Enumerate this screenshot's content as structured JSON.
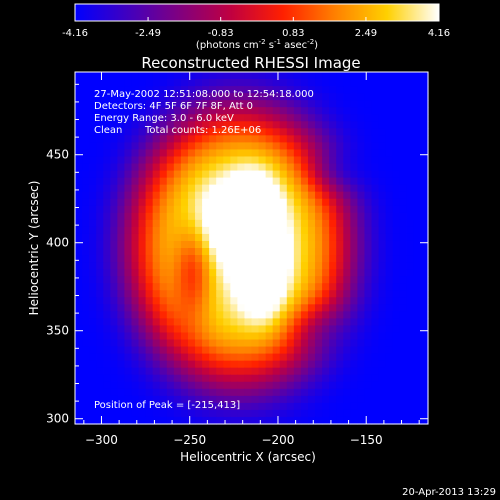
{
  "chart_data": {
    "type": "heatmap",
    "title": "Reconstructed RHESSI Image",
    "xlabel": "Heliocentric X (arcsec)",
    "ylabel": "Heliocentric Y (arcsec)",
    "xlim": [
      -315,
      -115
    ],
    "ylim": [
      297,
      497
    ],
    "x_ticks": [
      -300,
      -250,
      -200,
      -150
    ],
    "y_ticks": [
      300,
      350,
      400,
      450
    ],
    "colorbar": {
      "min": -4.16,
      "max": 4.16,
      "ticks": [
        "-4.16",
        "-2.49",
        "-0.83",
        "0.83",
        "2.49",
        "4.16"
      ],
      "units_prefix": "(photons cm",
      "units_exp1": "-2",
      "units_mid": " s",
      "units_exp2": "-1",
      "units_mid2": " asec",
      "units_exp3": "-2",
      "units_suffix": ")",
      "colors": [
        "#0000ff",
        "#4000c0",
        "#800080",
        "#c00040",
        "#ff2000",
        "#ff8000",
        "#ffd000",
        "#ffffff"
      ]
    },
    "annotations": {
      "time": "27-May-2002 12:51:08.000 to 12:54:18.000",
      "detectors": "Detectors: 4F 5F 6F 7F 8F, Att 0",
      "energy": "Energy Range: 3.0 - 6.0 keV",
      "clean_label": "Clean",
      "counts": "Total counts: 1.26E+06",
      "peak": "Position of Peak = [-215,413]"
    },
    "peak": [
      -215,
      413
    ],
    "sources": [
      {
        "x": -222,
        "y": 398,
        "sx": 62,
        "sy": 78,
        "amp": 3.6
      },
      {
        "x": -214,
        "y": 412,
        "sx": 10,
        "sy": 17,
        "amp": 4.5
      },
      {
        "x": -209,
        "y": 384,
        "sx": 9,
        "sy": 17,
        "amp": 3.5
      },
      {
        "x": -233,
        "y": 412,
        "sx": 13,
        "sy": 16,
        "amp": 1.6
      },
      {
        "x": -248,
        "y": 385,
        "sx": 8,
        "sy": 20,
        "amp": -2.6
      },
      {
        "x": -180,
        "y": 352,
        "sx": 12,
        "sy": 10,
        "amp": -1.2
      },
      {
        "x": -170,
        "y": 440,
        "sx": 12,
        "sy": 9,
        "amp": -1.2
      }
    ]
  },
  "timestamp": "20-Apr-2013 13:29"
}
